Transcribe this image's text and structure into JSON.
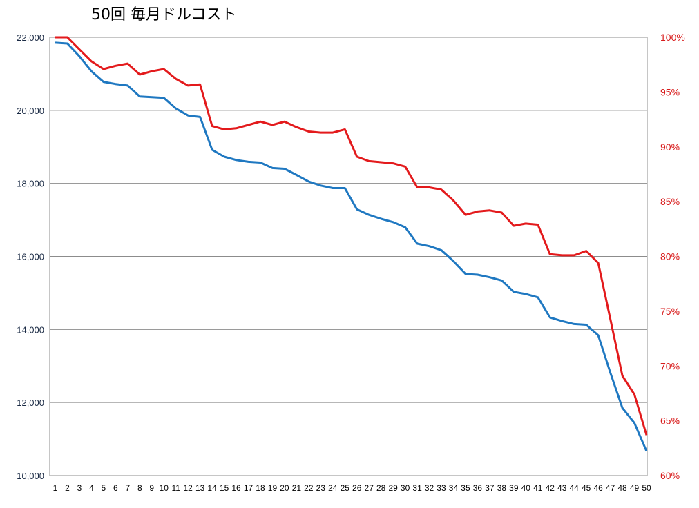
{
  "chart_data": {
    "type": "line",
    "title": "50回  毎月ドルコスト",
    "grid": true,
    "x": [
      1,
      2,
      3,
      4,
      5,
      6,
      7,
      8,
      9,
      10,
      11,
      12,
      13,
      14,
      15,
      16,
      17,
      18,
      19,
      20,
      21,
      22,
      23,
      24,
      25,
      26,
      27,
      28,
      29,
      30,
      31,
      32,
      33,
      34,
      35,
      36,
      37,
      38,
      39,
      40,
      41,
      42,
      43,
      44,
      45,
      46,
      47,
      48,
      49,
      50
    ],
    "y_left": {
      "ylim": [
        10000,
        22000
      ],
      "ticks": [
        "10,000",
        "12,000",
        "14,000",
        "16,000",
        "18,000",
        "20,000",
        "22,000"
      ],
      "tick_values": [
        10000,
        12000,
        14000,
        16000,
        18000,
        20000,
        22000
      ]
    },
    "y_right": {
      "ylim": [
        60,
        100
      ],
      "ticks": [
        "60%",
        "65%",
        "70%",
        "75%",
        "80%",
        "85%",
        "90%",
        "95%",
        "100%"
      ],
      "tick_values": [
        60,
        65,
        70,
        75,
        80,
        85,
        90,
        95,
        100
      ]
    },
    "series": [
      {
        "axis": "left",
        "color": "#1f78c1",
        "values": [
          21850,
          21830,
          21480,
          21070,
          20780,
          20720,
          20680,
          20380,
          20360,
          20340,
          20050,
          19860,
          19820,
          18920,
          18730,
          18640,
          18590,
          18570,
          18420,
          18400,
          18230,
          18050,
          17940,
          17870,
          17870,
          17290,
          17140,
          17030,
          16940,
          16800,
          16350,
          16280,
          16170,
          15870,
          15520,
          15500,
          15430,
          15340,
          15030,
          14970,
          14880,
          14330,
          14230,
          14150,
          14130,
          13840,
          12820,
          11850,
          11440,
          10670
        ]
      },
      {
        "axis": "right",
        "color": "#e31a1c",
        "values": [
          100,
          100,
          98.9,
          97.8,
          97.1,
          97.4,
          97.6,
          96.6,
          96.9,
          97.1,
          96.2,
          95.6,
          95.7,
          91.9,
          91.6,
          91.7,
          92.0,
          92.3,
          92.0,
          92.3,
          91.8,
          91.4,
          91.3,
          91.3,
          91.6,
          89.1,
          88.7,
          88.6,
          88.5,
          88.2,
          86.3,
          86.3,
          86.1,
          85.1,
          83.8,
          84.1,
          84.2,
          84.0,
          82.8,
          83.0,
          82.9,
          80.2,
          80.1,
          80.1,
          80.5,
          79.4,
          74.3,
          69.1,
          67.4,
          63.7
        ]
      }
    ]
  }
}
